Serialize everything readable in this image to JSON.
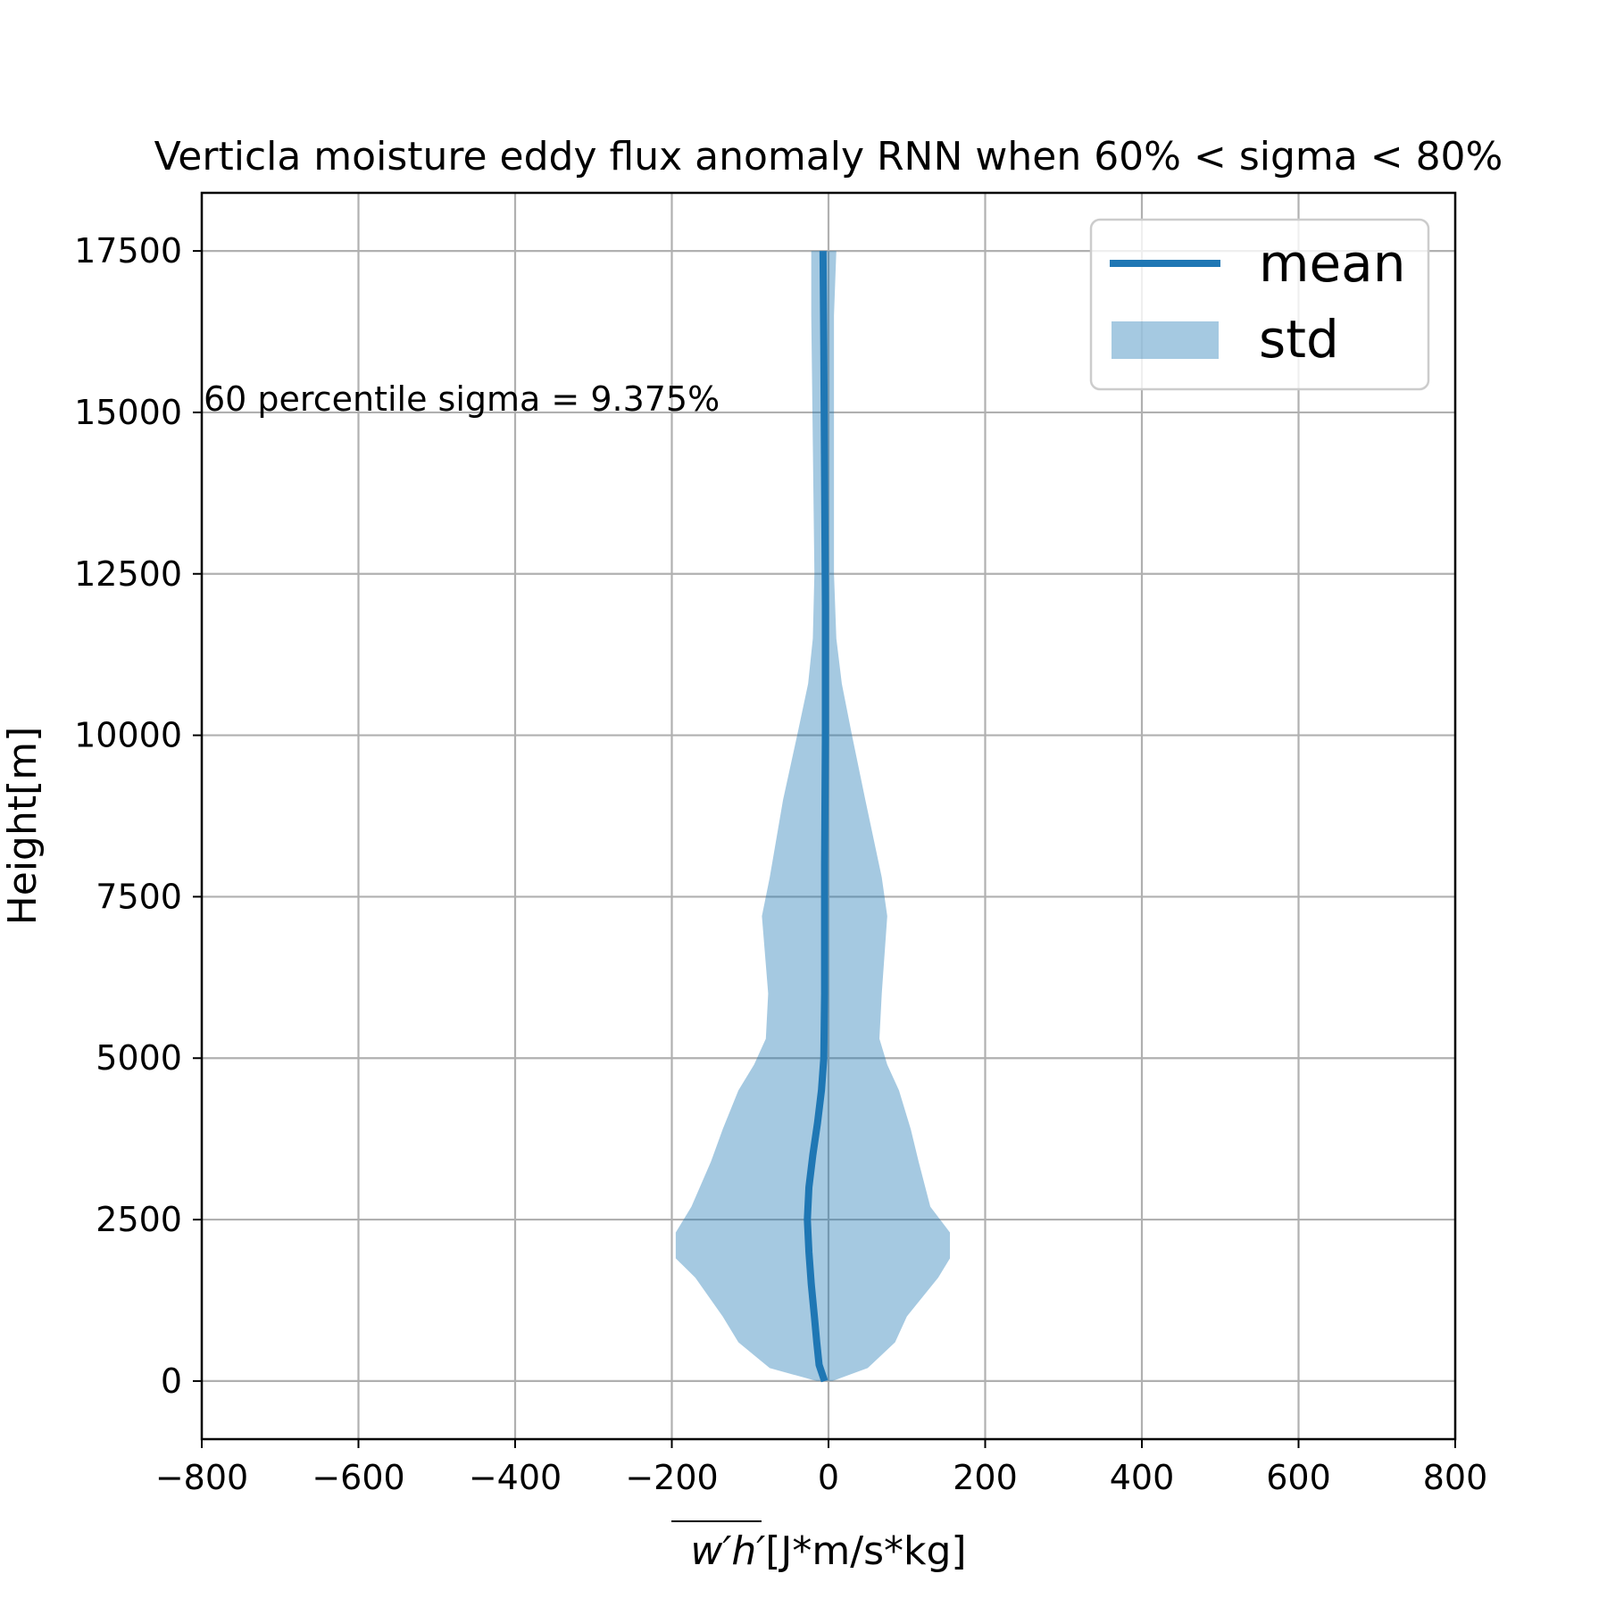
{
  "chart_data": {
    "type": "line",
    "title": "Verticla moisture eddy flux anomaly RNN when 60% < sigma < 80%",
    "xlabel_overline": "w′h′",
    "xlabel_units": "[J*m/s*kg]",
    "ylabel": "Height[m]",
    "xlim": [
      -800,
      800
    ],
    "ylim": [
      -900,
      18400
    ],
    "xticks": [
      -800,
      -600,
      -400,
      -200,
      0,
      200,
      400,
      600,
      800
    ],
    "xtick_labels": [
      "−800",
      "−600",
      "−400",
      "−200",
      "0",
      "200",
      "400",
      "600",
      "800"
    ],
    "yticks": [
      0,
      2500,
      5000,
      7500,
      10000,
      12500,
      15000,
      17500
    ],
    "ytick_labels": [
      "0",
      "2500",
      "5000",
      "7500",
      "10000",
      "12500",
      "15000",
      "17500"
    ],
    "grid": true,
    "legend_position": "top-right",
    "annotation": "60 percentile sigma = 9.375%",
    "annotation_at": {
      "x": -800,
      "y": 15000
    },
    "series": [
      {
        "name": "mean",
        "kind": "line",
        "color": "#1f77b4",
        "points": [
          {
            "y": 0,
            "x": -5
          },
          {
            "y": 250,
            "x": -12
          },
          {
            "y": 600,
            "x": -15
          },
          {
            "y": 1000,
            "x": -18
          },
          {
            "y": 1500,
            "x": -22
          },
          {
            "y": 2000,
            "x": -25
          },
          {
            "y": 2500,
            "x": -27
          },
          {
            "y": 3000,
            "x": -25
          },
          {
            "y": 3500,
            "x": -20
          },
          {
            "y": 4000,
            "x": -14
          },
          {
            "y": 4500,
            "x": -9
          },
          {
            "y": 5000,
            "x": -6
          },
          {
            "y": 6000,
            "x": -5
          },
          {
            "y": 8000,
            "x": -5
          },
          {
            "y": 10000,
            "x": -4
          },
          {
            "y": 12000,
            "x": -4
          },
          {
            "y": 14000,
            "x": -5
          },
          {
            "y": 16000,
            "x": -6
          },
          {
            "y": 17500,
            "x": -7
          }
        ]
      },
      {
        "name": "std",
        "kind": "band",
        "color": "#1f77b4",
        "opacity": 0.4,
        "points": [
          {
            "y": 0,
            "lo": -15,
            "hi": 5
          },
          {
            "y": 200,
            "lo": -75,
            "hi": 50
          },
          {
            "y": 600,
            "lo": -115,
            "hi": 85
          },
          {
            "y": 1000,
            "lo": -135,
            "hi": 100
          },
          {
            "y": 1600,
            "lo": -170,
            "hi": 140
          },
          {
            "y": 1900,
            "lo": -195,
            "hi": 155
          },
          {
            "y": 2300,
            "lo": -195,
            "hi": 155
          },
          {
            "y": 2700,
            "lo": -175,
            "hi": 130
          },
          {
            "y": 3400,
            "lo": -150,
            "hi": 115
          },
          {
            "y": 3900,
            "lo": -135,
            "hi": 105
          },
          {
            "y": 4500,
            "lo": -115,
            "hi": 90
          },
          {
            "y": 4900,
            "lo": -95,
            "hi": 75
          },
          {
            "y": 5300,
            "lo": -80,
            "hi": 65
          },
          {
            "y": 6000,
            "lo": -77,
            "hi": 68
          },
          {
            "y": 7200,
            "lo": -85,
            "hi": 75
          },
          {
            "y": 7800,
            "lo": -75,
            "hi": 68
          },
          {
            "y": 9000,
            "lo": -58,
            "hi": 47
          },
          {
            "y": 10000,
            "lo": -40,
            "hi": 30
          },
          {
            "y": 10800,
            "lo": -26,
            "hi": 17
          },
          {
            "y": 11500,
            "lo": -20,
            "hi": 10
          },
          {
            "y": 12500,
            "lo": -18,
            "hi": 7
          },
          {
            "y": 14500,
            "lo": -20,
            "hi": 7
          },
          {
            "y": 16500,
            "lo": -22,
            "hi": 7
          },
          {
            "y": 17500,
            "lo": -22,
            "hi": 10
          }
        ]
      }
    ]
  }
}
